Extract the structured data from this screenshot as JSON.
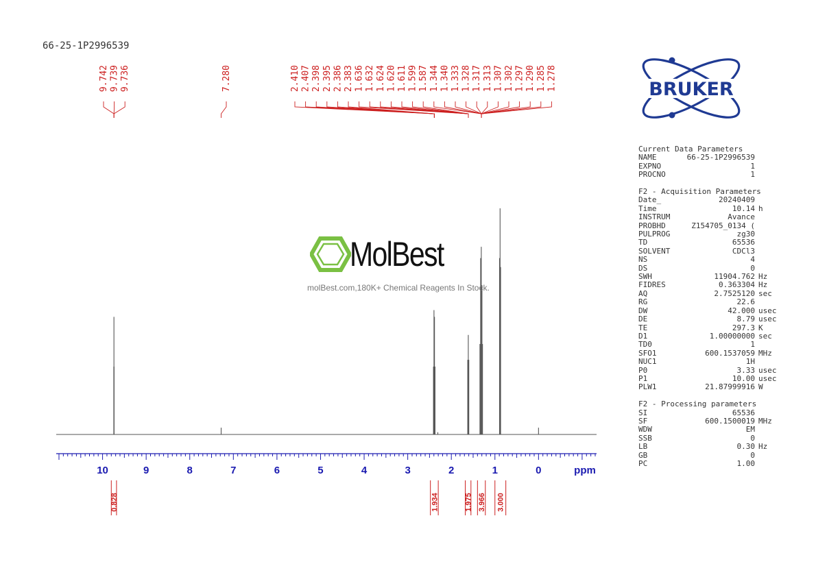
{
  "sample_name": "66-25-1P2996539",
  "logo": {
    "text": "BRUKER",
    "color": "#1f3a93",
    "accent": "#1f3a93"
  },
  "watermark": {
    "brand": "MolBest",
    "tagline": "molBest.com,180K+ Chemical Reagents In Stock.",
    "icon_color": "#7ac043"
  },
  "chart_data": {
    "type": "line",
    "xlabel": "ppm",
    "x_reversed": true,
    "xlim": [
      11.0,
      -1.3
    ],
    "ticks": [
      10,
      9,
      8,
      7,
      6,
      5,
      4,
      3,
      2,
      1,
      0
    ],
    "peaks": [
      {
        "ppm": 9.739,
        "height": 0.52
      },
      {
        "ppm": 9.742,
        "height": 0.3
      },
      {
        "ppm": 9.736,
        "height": 0.3
      },
      {
        "ppm": 7.28,
        "height": 0.03
      },
      {
        "ppm": 2.398,
        "height": 0.55
      },
      {
        "ppm": 2.386,
        "height": 0.52
      },
      {
        "ppm": 2.41,
        "height": 0.3
      },
      {
        "ppm": 2.374,
        "height": 0.3
      },
      {
        "ppm": 2.31,
        "height": 0.01
      },
      {
        "ppm": 1.611,
        "height": 0.44
      },
      {
        "ppm": 1.624,
        "height": 0.33
      },
      {
        "ppm": 1.599,
        "height": 0.33
      },
      {
        "ppm": 1.313,
        "height": 0.83
      },
      {
        "ppm": 1.328,
        "height": 0.78
      },
      {
        "ppm": 1.297,
        "height": 0.66
      },
      {
        "ppm": 1.344,
        "height": 0.4
      },
      {
        "ppm": 1.285,
        "height": 0.4
      },
      {
        "ppm": 0.882,
        "height": 1.0
      },
      {
        "ppm": 0.894,
        "height": 0.78
      },
      {
        "ppm": 0.87,
        "height": 0.74
      },
      {
        "ppm": 0.0,
        "height": 0.03
      }
    ],
    "peak_label_groups": [
      {
        "labels": [
          "9.742",
          "9.739",
          "9.736"
        ],
        "anchor_ppm": 9.739
      },
      {
        "labels": [
          "7.280"
        ],
        "anchor_ppm": 7.28
      },
      {
        "labels": [
          "2.410",
          "2.407",
          "2.398",
          "2.395",
          "2.386",
          "2.383",
          "1.636",
          "1.632",
          "1.624",
          "1.620",
          "1.611",
          "1.599",
          "1.587",
          "1.344",
          "1.340",
          "1.333",
          "1.328",
          "1.317",
          "1.313",
          "1.307",
          "1.302",
          "1.297",
          "1.290",
          "1.285",
          "1.278"
        ],
        "anchor_ppm": 1.6
      }
    ],
    "integrals": [
      {
        "value": "0.828",
        "from": 9.8,
        "to": 9.68
      },
      {
        "value": "1.934",
        "from": 2.48,
        "to": 2.3
      },
      {
        "value": "1.975",
        "from": 1.68,
        "to": 1.55
      },
      {
        "value": "3.966",
        "from": 1.4,
        "to": 1.22
      },
      {
        "value": "3.000",
        "from": 1.0,
        "to": 0.75
      }
    ],
    "colors": {
      "trace": "#555555",
      "axis": "#1a1ab0",
      "annotation": "#cc1f1f"
    }
  },
  "params": {
    "sections": [
      {
        "title": "Current Data Parameters",
        "rows": [
          {
            "name": "NAME",
            "value": "66-25-1P2996539",
            "unit": ""
          },
          {
            "name": "EXPNO",
            "value": "1",
            "unit": ""
          },
          {
            "name": "PROCNO",
            "value": "1",
            "unit": ""
          }
        ]
      },
      {
        "title": "F2 - Acquisition Parameters",
        "rows": [
          {
            "name": "Date_",
            "value": "20240409",
            "unit": ""
          },
          {
            "name": "Time",
            "value": "10.14",
            "unit": "h"
          },
          {
            "name": "INSTRUM",
            "value": "Avance",
            "unit": ""
          },
          {
            "name": "PROBHD",
            "value": "Z154705_0134 (",
            "unit": ""
          },
          {
            "name": "PULPROG",
            "value": "zg30",
            "unit": ""
          },
          {
            "name": "TD",
            "value": "65536",
            "unit": ""
          },
          {
            "name": "SOLVENT",
            "value": "CDCl3",
            "unit": ""
          },
          {
            "name": "NS",
            "value": "4",
            "unit": ""
          },
          {
            "name": "DS",
            "value": "0",
            "unit": ""
          },
          {
            "name": "SWH",
            "value": "11904.762",
            "unit": "Hz"
          },
          {
            "name": "FIDRES",
            "value": "0.363304",
            "unit": "Hz"
          },
          {
            "name": "AQ",
            "value": "2.7525120",
            "unit": "sec"
          },
          {
            "name": "RG",
            "value": "22.6",
            "unit": ""
          },
          {
            "name": "DW",
            "value": "42.000",
            "unit": "usec"
          },
          {
            "name": "DE",
            "value": "8.79",
            "unit": "usec"
          },
          {
            "name": "TE",
            "value": "297.3",
            "unit": "K"
          },
          {
            "name": "D1",
            "value": "1.00000000",
            "unit": "sec"
          },
          {
            "name": "TD0",
            "value": "1",
            "unit": ""
          },
          {
            "name": "SFO1",
            "value": "600.1537059",
            "unit": "MHz"
          },
          {
            "name": "NUC1",
            "value": "1H",
            "unit": ""
          },
          {
            "name": "P0",
            "value": "3.33",
            "unit": "usec"
          },
          {
            "name": "P1",
            "value": "10.00",
            "unit": "usec"
          },
          {
            "name": "PLW1",
            "value": "21.87999916",
            "unit": "W"
          }
        ]
      },
      {
        "title": "F2 - Processing parameters",
        "rows": [
          {
            "name": "SI",
            "value": "65536",
            "unit": ""
          },
          {
            "name": "SF",
            "value": "600.1500019",
            "unit": "MHz"
          },
          {
            "name": "WDW",
            "value": "EM",
            "unit": ""
          },
          {
            "name": "SSB",
            "value": "0",
            "unit": ""
          },
          {
            "name": "LB",
            "value": "0.30",
            "unit": "Hz"
          },
          {
            "name": "GB",
            "value": "0",
            "unit": ""
          },
          {
            "name": "PC",
            "value": "1.00",
            "unit": ""
          }
        ]
      }
    ]
  }
}
